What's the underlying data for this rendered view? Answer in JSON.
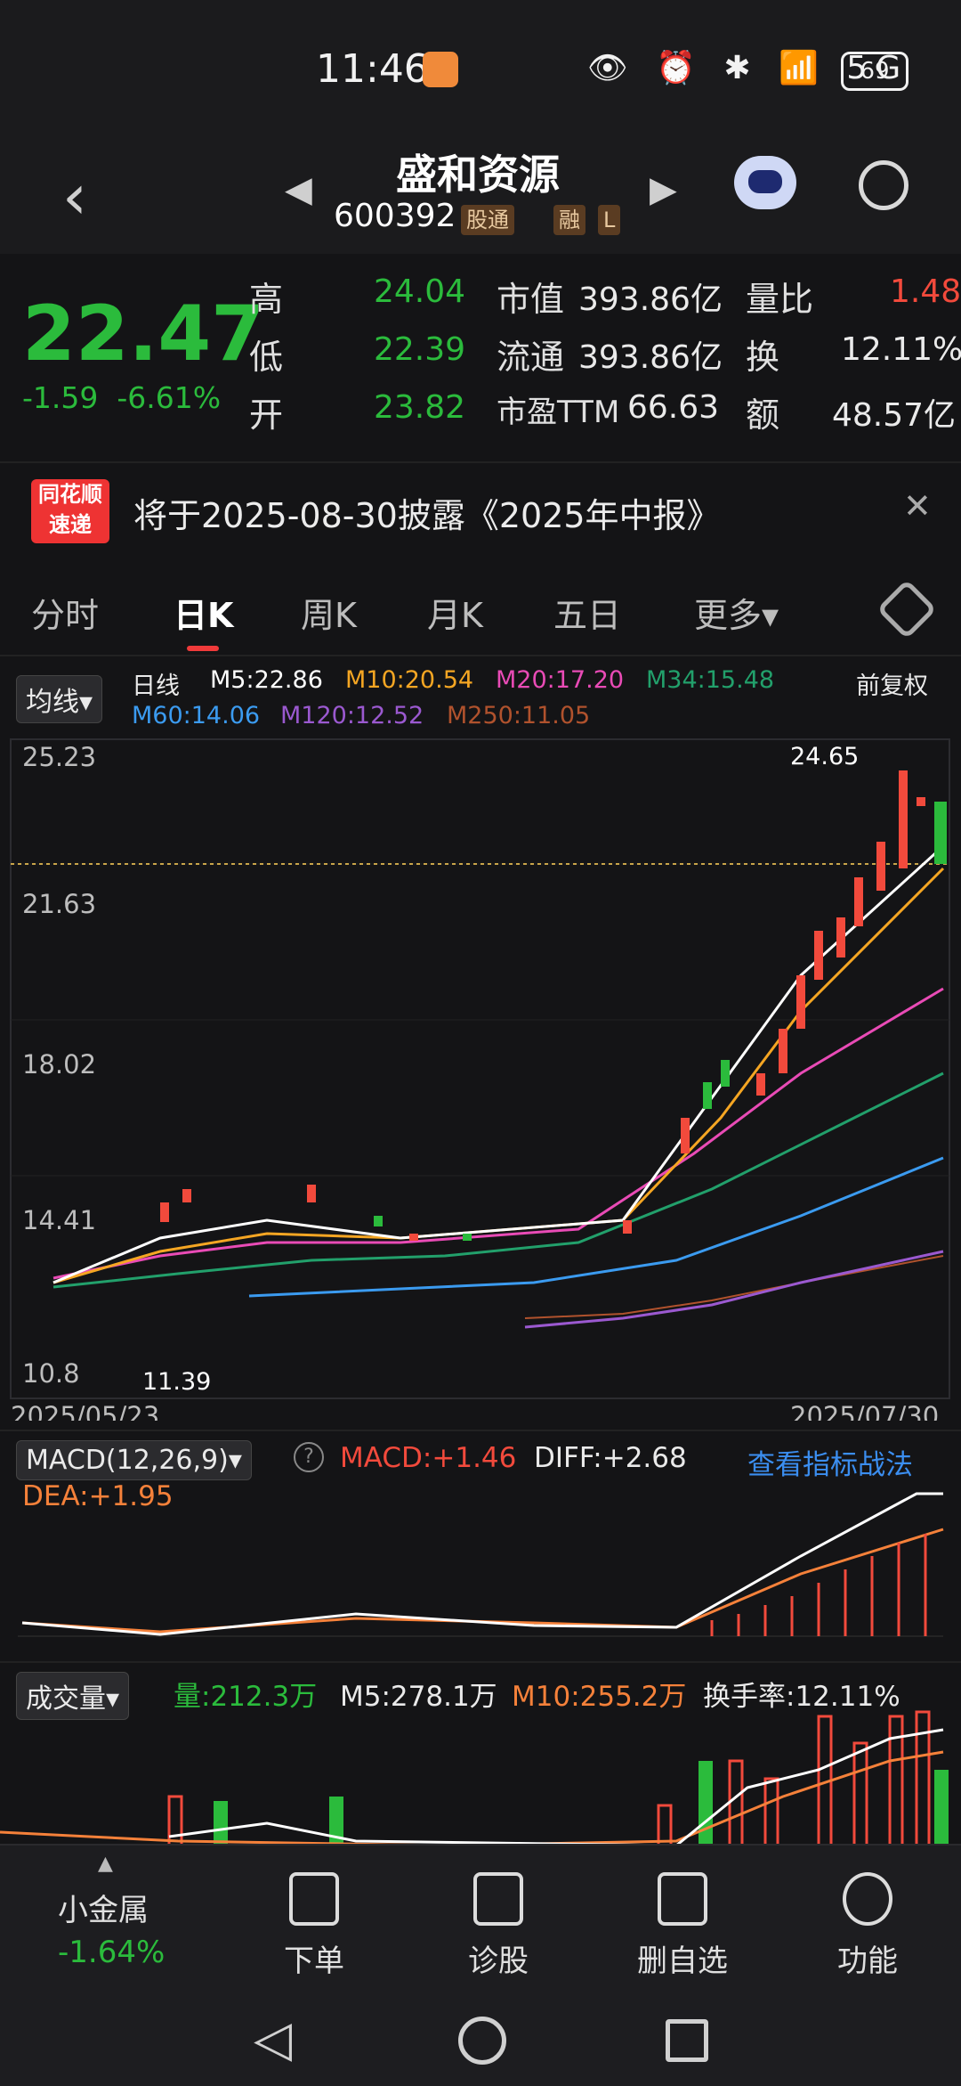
{
  "status": {
    "time": "11:46",
    "icons": "👁 ⏰ ✱ 📶 5G",
    "battery": "69"
  },
  "header": {
    "title": "盛和资源",
    "code": "600392",
    "tags": [
      "股通",
      "融",
      "L"
    ]
  },
  "quote": {
    "price": "22.47",
    "change": "-1.59",
    "change_pct": "-6.61%",
    "high_label": "高",
    "high": "24.04",
    "low_label": "低",
    "low": "22.39",
    "open_label": "开",
    "open": "23.82",
    "mcap_label": "市值",
    "mcap": "393.86亿",
    "float_label": "流通",
    "float": "393.86亿",
    "pe_label": "市盈TTM",
    "pe": "66.63",
    "vr_label": "量比",
    "vr": "1.48",
    "turn_label": "换",
    "turn": "12.11%",
    "amt_label": "额",
    "amt": "48.57亿"
  },
  "notice": {
    "logo": "同花顺 速递",
    "text": "将于2025-08-30披露《2025年中报》"
  },
  "tabs": [
    "分时",
    "日K",
    "周K",
    "月K",
    "五日",
    "更多▾"
  ],
  "ma": {
    "selector": "均线▾",
    "period": "日线",
    "m5": "M5:22.86",
    "m10": "M10:20.54",
    "m20": "M20:17.20",
    "m34": "M34:15.48",
    "m60": "M60:14.06",
    "m120": "M120:12.52",
    "m250": "M250:11.05",
    "adjust": "前复权"
  },
  "kchart": {
    "y_labels": [
      "25.23",
      "21.63",
      "18.02",
      "14.41",
      "10.8"
    ],
    "max_label": "24.65",
    "min_label": "11.39",
    "start_date": "2025/05/23",
    "end_date": "2025/07/30"
  },
  "macd": {
    "selector": "MACD(12,26,9)▾",
    "macd": "MACD:+1.46",
    "diff": "DIFF:+2.68",
    "dea": "DEA:+1.95",
    "link": "查看指标战法"
  },
  "volume": {
    "selector": "成交量▾",
    "vol": "量:212.3万",
    "m5": "M5:278.1万",
    "m10": "M10:255.2万",
    "turn": "换手率:12.11%"
  },
  "bottom": {
    "sector": "小金属",
    "sector_pct": "-1.64%",
    "items": [
      "下单",
      "诊股",
      "删自选",
      "功能"
    ]
  },
  "colors": {
    "up": "#f24a3c",
    "down": "#2bbb3c",
    "m5": "#ffffff",
    "m10": "#f5a623",
    "m20": "#e94bb6",
    "m34": "#22a06b",
    "m60": "#3b9bf0",
    "m120": "#9b59d0",
    "m250": "#b0522d"
  }
}
